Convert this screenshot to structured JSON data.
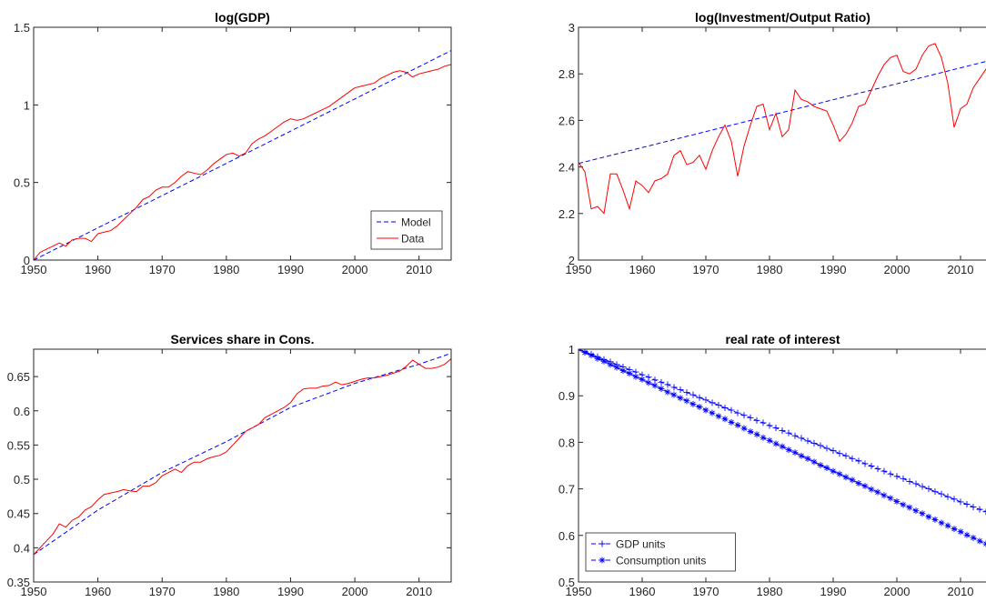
{
  "chart_data": [
    {
      "type": "line",
      "title": "log(GDP)",
      "xlim": [
        1950,
        2015
      ],
      "xticks": [
        1950,
        1960,
        1970,
        1980,
        1990,
        2000,
        2010
      ],
      "ylim": [
        0,
        1.5
      ],
      "yticks": [
        0,
        0.5,
        1,
        1.5
      ],
      "legend": "lower right",
      "series": [
        {
          "name": "Model",
          "color": "#0000ff",
          "style": "dashed",
          "x": [
            1950,
            2015
          ],
          "values": [
            0,
            1.35
          ]
        },
        {
          "name": "Data",
          "color": "#ff0000",
          "style": "solid",
          "x": [
            1950,
            1951,
            1952,
            1953,
            1954,
            1955,
            1956,
            1957,
            1958,
            1959,
            1960,
            1961,
            1962,
            1963,
            1964,
            1965,
            1966,
            1967,
            1968,
            1969,
            1970,
            1971,
            1972,
            1973,
            1974,
            1975,
            1976,
            1977,
            1978,
            1979,
            1980,
            1981,
            1982,
            1983,
            1984,
            1985,
            1986,
            1987,
            1988,
            1989,
            1990,
            1991,
            1992,
            1993,
            1994,
            1995,
            1996,
            1997,
            1998,
            1999,
            2000,
            2001,
            2002,
            2003,
            2004,
            2005,
            2006,
            2007,
            2008,
            2009,
            2010,
            2011,
            2012,
            2013,
            2014,
            2015
          ],
          "values": [
            0,
            0.05,
            0.07,
            0.09,
            0.11,
            0.09,
            0.13,
            0.14,
            0.14,
            0.12,
            0.17,
            0.18,
            0.19,
            0.22,
            0.26,
            0.3,
            0.34,
            0.39,
            0.41,
            0.45,
            0.47,
            0.47,
            0.5,
            0.54,
            0.57,
            0.56,
            0.55,
            0.58,
            0.62,
            0.65,
            0.68,
            0.69,
            0.67,
            0.69,
            0.75,
            0.78,
            0.8,
            0.83,
            0.86,
            0.89,
            0.91,
            0.9,
            0.91,
            0.93,
            0.95,
            0.97,
            0.99,
            1.02,
            1.05,
            1.08,
            1.11,
            1.12,
            1.13,
            1.14,
            1.17,
            1.19,
            1.21,
            1.22,
            1.21,
            1.18,
            1.2,
            1.21,
            1.22,
            1.23,
            1.25,
            1.26
          ]
        }
      ]
    },
    {
      "type": "line",
      "title": "log(Investment/Output Ratio)",
      "xlim": [
        1950,
        2015
      ],
      "xticks": [
        1950,
        1960,
        1970,
        1980,
        1990,
        2000,
        2010
      ],
      "ylim": [
        2,
        3
      ],
      "yticks": [
        2,
        2.2,
        2.4,
        2.6,
        2.8,
        3
      ],
      "series": [
        {
          "name": "Model",
          "color": "#0000ff",
          "style": "dashed",
          "x": [
            1950,
            2015
          ],
          "values": [
            2.415,
            2.86
          ]
        },
        {
          "name": "Data",
          "color": "#ff0000",
          "style": "solid",
          "x": [
            1950,
            1951,
            1952,
            1953,
            1954,
            1955,
            1956,
            1957,
            1958,
            1959,
            1960,
            1961,
            1962,
            1963,
            1964,
            1965,
            1966,
            1967,
            1968,
            1969,
            1970,
            1971,
            1972,
            1973,
            1974,
            1975,
            1976,
            1977,
            1978,
            1979,
            1980,
            1981,
            1982,
            1983,
            1984,
            1985,
            1986,
            1987,
            1988,
            1989,
            1990,
            1991,
            1992,
            1993,
            1994,
            1995,
            1996,
            1997,
            1998,
            1999,
            2000,
            2001,
            2002,
            2003,
            2004,
            2005,
            2006,
            2007,
            2008,
            2009,
            2010,
            2011,
            2012,
            2013,
            2014,
            2015
          ],
          "values": [
            2.42,
            2.38,
            2.22,
            2.23,
            2.2,
            2.37,
            2.37,
            2.3,
            2.22,
            2.34,
            2.32,
            2.29,
            2.34,
            2.35,
            2.37,
            2.45,
            2.47,
            2.41,
            2.42,
            2.45,
            2.39,
            2.47,
            2.53,
            2.58,
            2.51,
            2.36,
            2.49,
            2.58,
            2.66,
            2.67,
            2.56,
            2.63,
            2.53,
            2.56,
            2.73,
            2.69,
            2.68,
            2.66,
            2.65,
            2.64,
            2.58,
            2.51,
            2.54,
            2.59,
            2.66,
            2.67,
            2.73,
            2.79,
            2.84,
            2.87,
            2.88,
            2.81,
            2.8,
            2.82,
            2.88,
            2.92,
            2.93,
            2.87,
            2.76,
            2.57,
            2.65,
            2.67,
            2.74,
            2.78,
            2.82,
            2.87
          ]
        }
      ]
    },
    {
      "type": "line",
      "title": "Services share in Cons.",
      "xlim": [
        1950,
        2015
      ],
      "xticks": [
        1950,
        1960,
        1970,
        1980,
        1990,
        2000,
        2010
      ],
      "ylim": [
        0.35,
        0.69
      ],
      "yticks": [
        0.35,
        0.4,
        0.45,
        0.5,
        0.55,
        0.6,
        0.65
      ],
      "series": [
        {
          "name": "Model",
          "color": "#0000ff",
          "style": "dashed",
          "x": [
            1950,
            1960,
            1970,
            1980,
            1990,
            2000,
            2010,
            2015
          ],
          "values": [
            0.39,
            0.455,
            0.51,
            0.555,
            0.605,
            0.64,
            0.668,
            0.684
          ]
        },
        {
          "name": "Data",
          "color": "#ff0000",
          "style": "solid",
          "x": [
            1950,
            1951,
            1952,
            1953,
            1954,
            1955,
            1956,
            1957,
            1958,
            1959,
            1960,
            1961,
            1962,
            1963,
            1964,
            1965,
            1966,
            1967,
            1968,
            1969,
            1970,
            1971,
            1972,
            1973,
            1974,
            1975,
            1976,
            1977,
            1978,
            1979,
            1980,
            1981,
            1982,
            1983,
            1984,
            1985,
            1986,
            1987,
            1988,
            1989,
            1990,
            1991,
            1992,
            1993,
            1994,
            1995,
            1996,
            1997,
            1998,
            1999,
            2000,
            2001,
            2002,
            2003,
            2004,
            2005,
            2006,
            2007,
            2008,
            2009,
            2010,
            2011,
            2012,
            2013,
            2014,
            2015
          ],
          "values": [
            0.39,
            0.4,
            0.41,
            0.42,
            0.435,
            0.43,
            0.44,
            0.445,
            0.455,
            0.46,
            0.47,
            0.478,
            0.48,
            0.482,
            0.485,
            0.483,
            0.482,
            0.49,
            0.49,
            0.495,
            0.505,
            0.51,
            0.515,
            0.51,
            0.52,
            0.525,
            0.525,
            0.53,
            0.533,
            0.535,
            0.54,
            0.55,
            0.56,
            0.57,
            0.575,
            0.58,
            0.59,
            0.595,
            0.6,
            0.605,
            0.612,
            0.625,
            0.632,
            0.633,
            0.633,
            0.636,
            0.637,
            0.642,
            0.638,
            0.64,
            0.643,
            0.646,
            0.648,
            0.648,
            0.65,
            0.652,
            0.655,
            0.658,
            0.665,
            0.674,
            0.668,
            0.662,
            0.662,
            0.664,
            0.668,
            0.676
          ]
        }
      ]
    },
    {
      "type": "line",
      "title": "real rate of interest",
      "xlim": [
        1950,
        2015
      ],
      "xticks": [
        1950,
        1960,
        1970,
        1980,
        1990,
        2000,
        2010
      ],
      "ylim": [
        0.5,
        1
      ],
      "yticks": [
        0.5,
        0.6,
        0.7,
        0.8,
        0.9,
        1
      ],
      "legend": "lower left",
      "series": [
        {
          "name": "GDP units",
          "color": "#0000ff",
          "style": "dashed",
          "marker": "plus",
          "x": [
            1950,
            1951,
            1952,
            1953,
            1954,
            1955,
            1956,
            1957,
            1958,
            1959,
            1960,
            1961,
            1962,
            1963,
            1964,
            1965,
            1966,
            1967,
            1968,
            1969,
            1970,
            1971,
            1972,
            1973,
            1974,
            1975,
            1976,
            1977,
            1978,
            1979,
            1980,
            1981,
            1982,
            1983,
            1984,
            1985,
            1986,
            1987,
            1988,
            1989,
            1990,
            1991,
            1992,
            1993,
            1994,
            1995,
            1996,
            1997,
            1998,
            1999,
            2000,
            2001,
            2002,
            2003,
            2004,
            2005,
            2006,
            2007,
            2008,
            2009,
            2010,
            2011,
            2012,
            2013,
            2014,
            2015
          ],
          "values": [
            1,
            0.995,
            0.989,
            0.984,
            0.978,
            0.973,
            0.967,
            0.962,
            0.956,
            0.951,
            0.945,
            0.94,
            0.934,
            0.929,
            0.924,
            0.918,
            0.913,
            0.907,
            0.902,
            0.896,
            0.891,
            0.885,
            0.88,
            0.874,
            0.869,
            0.863,
            0.858,
            0.853,
            0.847,
            0.842,
            0.836,
            0.831,
            0.825,
            0.82,
            0.814,
            0.809,
            0.803,
            0.798,
            0.793,
            0.787,
            0.782,
            0.776,
            0.771,
            0.765,
            0.76,
            0.754,
            0.749,
            0.743,
            0.738,
            0.732,
            0.727,
            0.722,
            0.716,
            0.711,
            0.705,
            0.7,
            0.694,
            0.689,
            0.683,
            0.678,
            0.672,
            0.667,
            0.661,
            0.656,
            0.651,
            0.645
          ]
        },
        {
          "name": "Consumption units",
          "color": "#0000ff",
          "style": "dashed",
          "marker": "star",
          "x": [
            1950,
            1951,
            1952,
            1953,
            1954,
            1955,
            1956,
            1957,
            1958,
            1959,
            1960,
            1961,
            1962,
            1963,
            1964,
            1965,
            1966,
            1967,
            1968,
            1969,
            1970,
            1971,
            1972,
            1973,
            1974,
            1975,
            1976,
            1977,
            1978,
            1979,
            1980,
            1981,
            1982,
            1983,
            1984,
            1985,
            1986,
            1987,
            1988,
            1989,
            1990,
            1991,
            1992,
            1993,
            1994,
            1995,
            1996,
            1997,
            1998,
            1999,
            2000,
            2001,
            2002,
            2003,
            2004,
            2005,
            2006,
            2007,
            2008,
            2009,
            2010,
            2011,
            2012,
            2013,
            2014,
            2015
          ],
          "values": [
            1,
            0.993,
            0.987,
            0.98,
            0.974,
            0.967,
            0.961,
            0.954,
            0.948,
            0.941,
            0.935,
            0.928,
            0.922,
            0.915,
            0.908,
            0.902,
            0.895,
            0.889,
            0.882,
            0.876,
            0.869,
            0.863,
            0.856,
            0.85,
            0.843,
            0.837,
            0.83,
            0.823,
            0.817,
            0.81,
            0.804,
            0.797,
            0.791,
            0.784,
            0.778,
            0.771,
            0.765,
            0.758,
            0.751,
            0.745,
            0.738,
            0.732,
            0.725,
            0.719,
            0.712,
            0.706,
            0.699,
            0.693,
            0.686,
            0.68,
            0.673,
            0.666,
            0.66,
            0.653,
            0.647,
            0.64,
            0.634,
            0.627,
            0.621,
            0.614,
            0.608,
            0.601,
            0.595,
            0.588,
            0.582,
            0.575
          ]
        }
      ]
    }
  ]
}
